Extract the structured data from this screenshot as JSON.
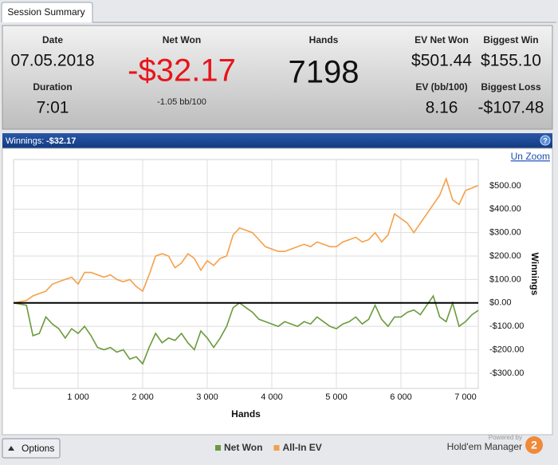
{
  "tab": "Session Summary",
  "summary": {
    "date_label": "Date",
    "date": "07.05.2018",
    "duration_label": "Duration",
    "duration": "7:01",
    "net_won_label": "Net Won",
    "net_won": "-$32.17",
    "net_won_rate": "-1.05 bb/100",
    "hands_label": "Hands",
    "hands": "7198",
    "ev_net_won_label": "EV Net Won",
    "ev_net_won": "$501.44",
    "ev_rate_label": "EV (bb/100)",
    "ev_rate": "8.16",
    "biggest_win_label": "Biggest Win",
    "biggest_win": "$155.10",
    "biggest_loss_label": "Biggest Loss",
    "biggest_loss": "-$107.48"
  },
  "chart_header": {
    "label": "Winnings:",
    "value": "-$32.17",
    "help": "?"
  },
  "unzoom": "Un Zoom",
  "chart_data": {
    "type": "line",
    "xlabel": "Hands",
    "ylabel": "Winnings",
    "xlim": [
      0,
      7198
    ],
    "ylim": [
      -365,
      612
    ],
    "xticks": [
      {
        "value": 1000,
        "label": "1 000"
      },
      {
        "value": 2000,
        "label": "2 000"
      },
      {
        "value": 3000,
        "label": "3 000"
      },
      {
        "value": 4000,
        "label": "4 000"
      },
      {
        "value": 5000,
        "label": "5 000"
      },
      {
        "value": 6000,
        "label": "6 000"
      },
      {
        "value": 7000,
        "label": "7 000"
      }
    ],
    "yticks": [
      {
        "value": 500,
        "label": "$500.00"
      },
      {
        "value": 400,
        "label": "$400.00"
      },
      {
        "value": 300,
        "label": "$300.00"
      },
      {
        "value": 200,
        "label": "$200.00"
      },
      {
        "value": 100,
        "label": "$100.00"
      },
      {
        "value": 0,
        "label": "$0.00"
      },
      {
        "value": -100,
        "label": "-$100.00"
      },
      {
        "value": -200,
        "label": "-$200.00"
      },
      {
        "value": -300,
        "label": "-$300.00"
      }
    ],
    "grid": true,
    "zero_line": true,
    "legend": "bottom",
    "x": [
      0,
      100,
      200,
      300,
      400,
      500,
      600,
      700,
      800,
      900,
      1000,
      1100,
      1200,
      1300,
      1400,
      1500,
      1600,
      1700,
      1800,
      1900,
      2000,
      2100,
      2200,
      2300,
      2400,
      2500,
      2600,
      2700,
      2800,
      2900,
      3000,
      3100,
      3200,
      3300,
      3400,
      3500,
      3600,
      3700,
      3800,
      3900,
      4000,
      4100,
      4200,
      4300,
      4400,
      4500,
      4600,
      4700,
      4800,
      4900,
      5000,
      5100,
      5200,
      5300,
      5400,
      5500,
      5600,
      5700,
      5800,
      5900,
      6000,
      6100,
      6200,
      6300,
      6400,
      6500,
      6600,
      6700,
      6800,
      6900,
      7000,
      7100,
      7198
    ],
    "series": [
      {
        "name": "Net Won",
        "color": "#6b9a3c",
        "values": [
          0,
          -5,
          -10,
          -140,
          -130,
          -60,
          -90,
          -110,
          -150,
          -110,
          -130,
          -100,
          -140,
          -190,
          -200,
          -190,
          -210,
          -200,
          -240,
          -230,
          -260,
          -190,
          -130,
          -170,
          -150,
          -160,
          -130,
          -170,
          -200,
          -120,
          -150,
          -190,
          -150,
          -100,
          -20,
          0,
          -20,
          -40,
          -70,
          -80,
          -90,
          -100,
          -80,
          -90,
          -100,
          -80,
          -90,
          -60,
          -80,
          -100,
          -110,
          -90,
          -80,
          -60,
          -90,
          -70,
          -10,
          -70,
          -100,
          -60,
          -60,
          -40,
          -30,
          -50,
          -10,
          30,
          -60,
          -80,
          0,
          -100,
          -80,
          -50,
          -32.17
        ]
      },
      {
        "name": "All-In EV",
        "color": "#f5a04a",
        "values": [
          0,
          5,
          10,
          30,
          40,
          50,
          80,
          90,
          100,
          110,
          80,
          130,
          130,
          120,
          110,
          120,
          100,
          90,
          100,
          70,
          50,
          120,
          200,
          210,
          200,
          150,
          170,
          210,
          190,
          140,
          180,
          160,
          190,
          200,
          290,
          320,
          310,
          300,
          270,
          240,
          230,
          220,
          220,
          230,
          240,
          250,
          240,
          260,
          250,
          240,
          240,
          260,
          270,
          280,
          260,
          270,
          300,
          260,
          290,
          380,
          360,
          340,
          300,
          340,
          380,
          420,
          460,
          530,
          440,
          420,
          480,
          490,
          501.44
        ]
      }
    ]
  },
  "footer": {
    "options": "Options",
    "powered_by": "Powered by",
    "brand": "Hold'em Manager",
    "logo": "2"
  }
}
